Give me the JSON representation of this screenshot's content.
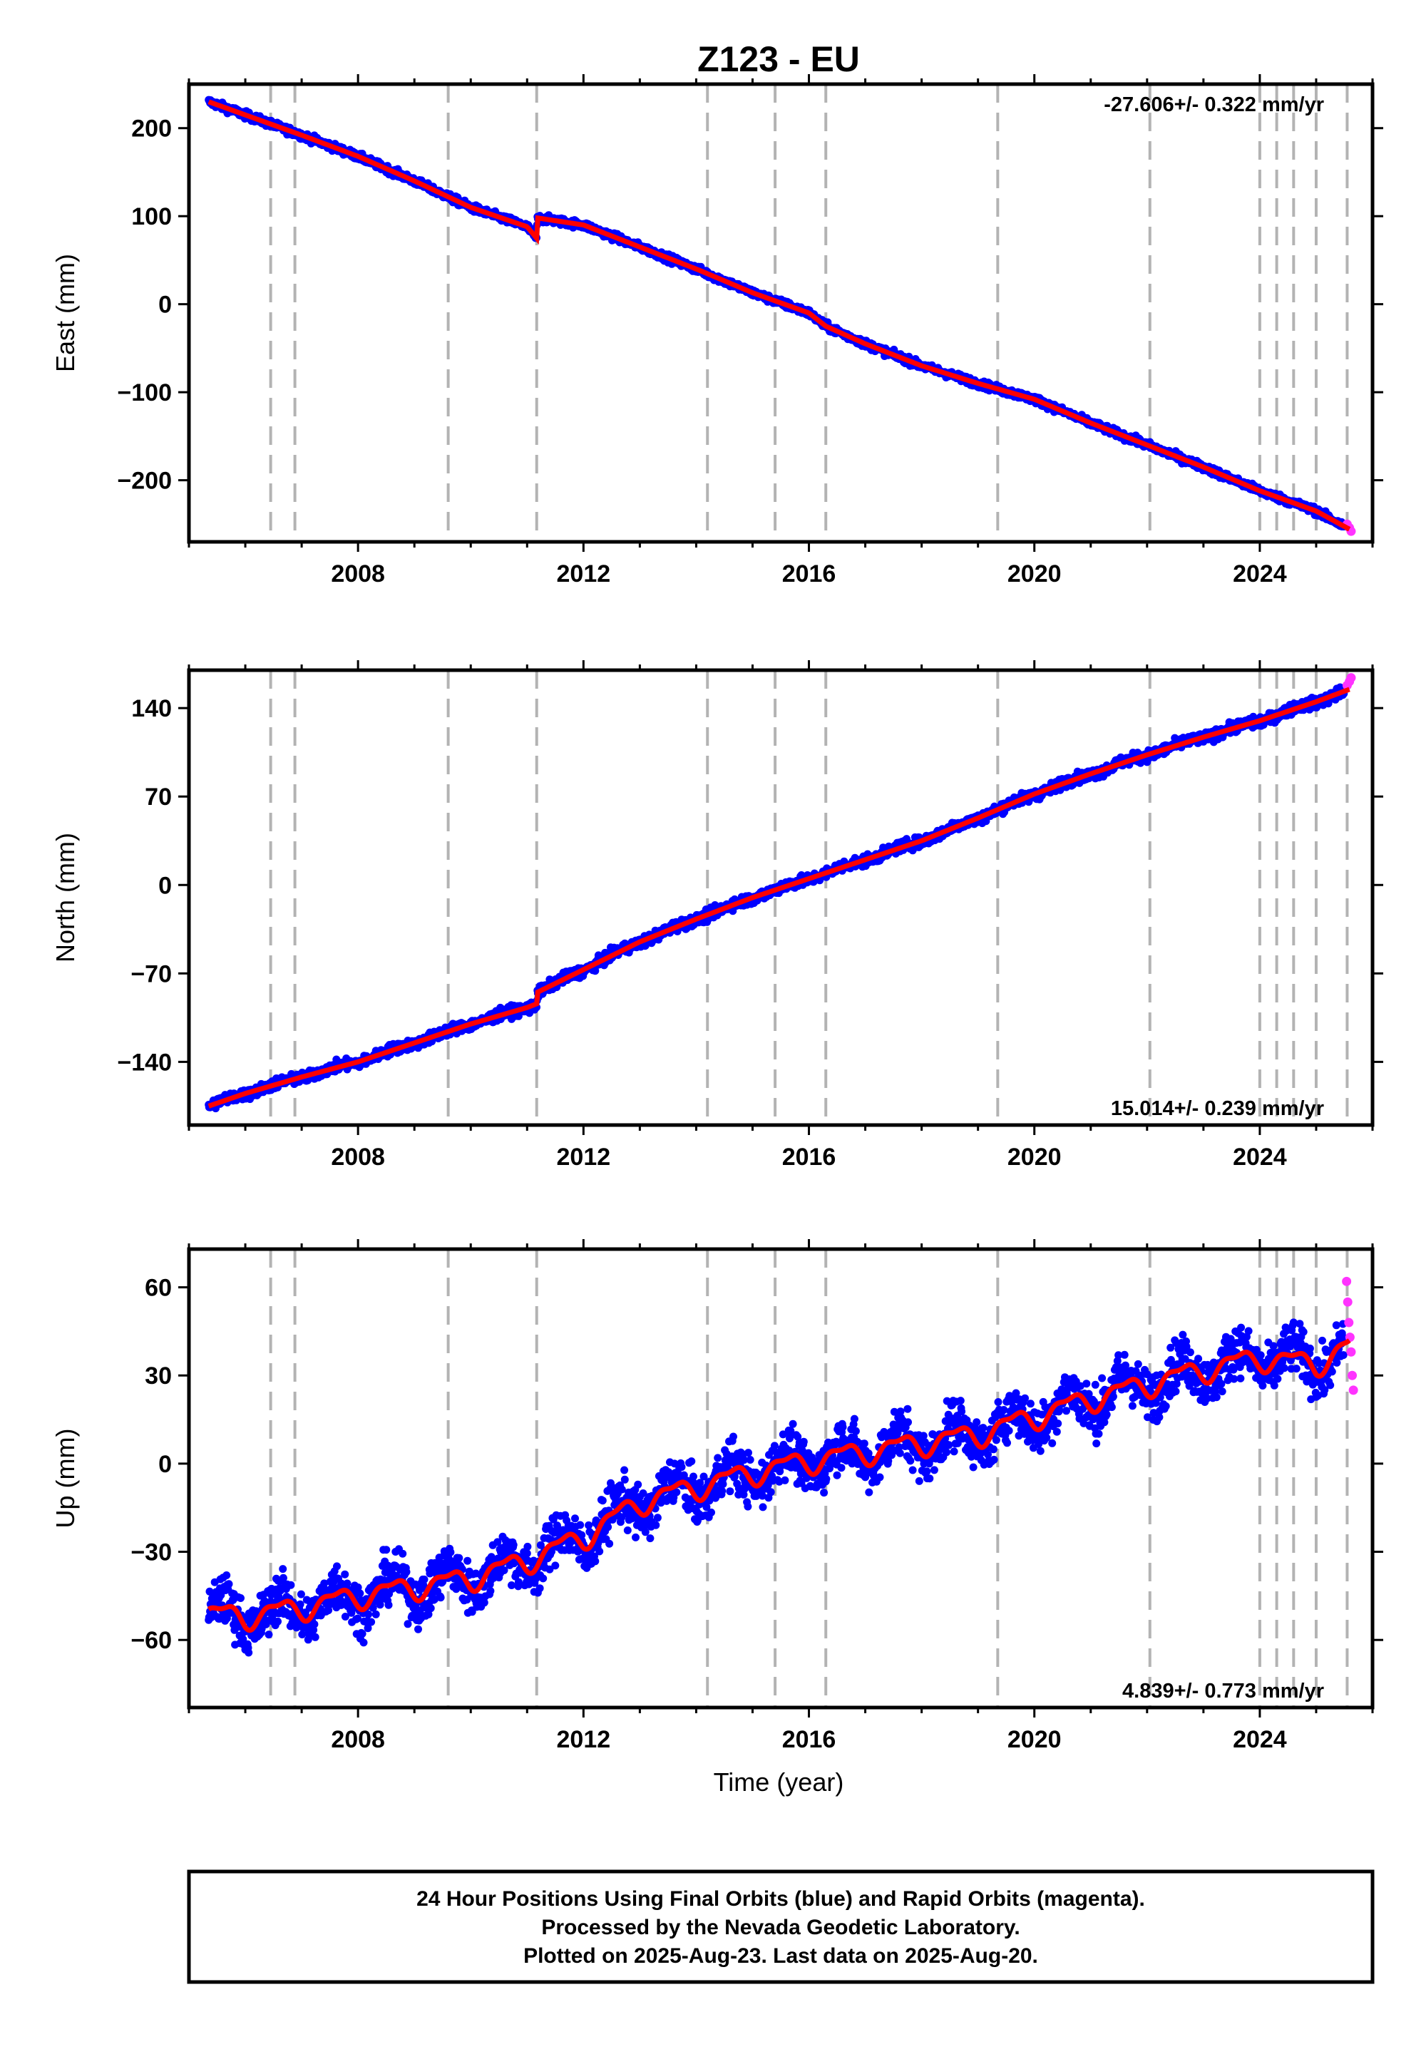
{
  "title": "Z123 - EU",
  "xlabel": "Time (year)",
  "x_ticks": [
    2008,
    2012,
    2016,
    2020,
    2024
  ],
  "event_lines": [
    2006.45,
    2006.88,
    2009.6,
    2011.17,
    2014.2,
    2015.4,
    2016.3,
    2019.35,
    2022.05,
    2024.0,
    2024.3,
    2024.6,
    2025.0,
    2025.55
  ],
  "footer": {
    "line1": "24 Hour Positions Using Final Orbits (blue) and Rapid Orbits (magenta).",
    "line2": "Processed by the Nevada Geodetic Laboratory.",
    "line3": "Plotted on 2025-Aug-23. Last data on 2025-Aug-20."
  },
  "colors": {
    "final": "#0000ff",
    "rapid": "#ff33ff",
    "model": "#ff0000",
    "event": "#b3b3b3"
  },
  "chart_data": [
    {
      "type": "scatter",
      "name": "east",
      "ylabel": "East (mm)",
      "rate_label": "-27.606+/- 0.322 mm/yr",
      "rate_position": "top-right",
      "xlim": [
        2005.0,
        2026.0
      ],
      "ylim": [
        -270,
        250
      ],
      "y_ticks": [
        -200,
        -100,
        0,
        100,
        200
      ],
      "y_tick_labels": [
        "−200",
        "−100",
        "0",
        "100",
        "200"
      ],
      "model_line": {
        "x": [
          2005.35,
          2006,
          2007,
          2008,
          2009,
          2010,
          2011,
          2011.17,
          2011.18,
          2012,
          2013,
          2014,
          2015,
          2016,
          2016.3,
          2017,
          2018,
          2019,
          2020,
          2021,
          2022,
          2023,
          2024,
          2025,
          2025.6
        ],
        "y": [
          230,
          215,
          192,
          168,
          140,
          110,
          88,
          75,
          98,
          90,
          65,
          40,
          13,
          -10,
          -25,
          -45,
          -70,
          -90,
          -108,
          -135,
          -160,
          -185,
          -212,
          -235,
          -256
        ]
      },
      "noise_mm": 3,
      "seasonal_mm": 0,
      "rapid_points": {
        "x": [
          2025.55,
          2025.59,
          2025.62
        ],
        "y": [
          -250,
          -254,
          -258
        ]
      }
    },
    {
      "type": "scatter",
      "name": "north",
      "ylabel": "North (mm)",
      "rate_label": "15.014+/- 0.239 mm/yr",
      "rate_position": "bottom-right",
      "xlim": [
        2005.0,
        2026.0
      ],
      "ylim": [
        -190,
        170
      ],
      "y_ticks": [
        -140,
        -70,
        0,
        70,
        140
      ],
      "y_tick_labels": [
        "−140",
        "−70",
        "0",
        "70",
        "140"
      ],
      "model_line": {
        "x": [
          2005.35,
          2006,
          2007,
          2008,
          2009,
          2010,
          2011,
          2011.17,
          2011.18,
          2012,
          2013,
          2014,
          2015,
          2016,
          2017,
          2018,
          2019,
          2020,
          2021,
          2022,
          2023,
          2024,
          2025,
          2025.6
        ],
        "y": [
          -175,
          -165,
          -152,
          -140,
          -125,
          -110,
          -97,
          -94,
          -85,
          -67,
          -45,
          -27,
          -10,
          5,
          20,
          35,
          53,
          72,
          88,
          103,
          117,
          130,
          145,
          155
        ]
      },
      "noise_mm": 3,
      "seasonal_mm": 1,
      "rapid_points": {
        "x": [
          2025.55,
          2025.59,
          2025.62
        ],
        "y": [
          158,
          161,
          164
        ]
      }
    },
    {
      "type": "scatter",
      "name": "up",
      "ylabel": "Up (mm)",
      "rate_label": "4.839+/- 0.773 mm/yr",
      "rate_position": "bottom-right",
      "xlim": [
        2005.0,
        2026.0
      ],
      "ylim": [
        -83,
        73
      ],
      "y_ticks": [
        -60,
        -30,
        0,
        30,
        60
      ],
      "y_tick_labels": [
        "−60",
        "−30",
        "0",
        "30",
        "60"
      ],
      "model_line": {
        "x": [
          2005.35,
          2006,
          2007,
          2008,
          2009,
          2010,
          2011,
          2012,
          2013,
          2014,
          2015,
          2016,
          2017,
          2018,
          2019,
          2020,
          2021,
          2022,
          2023,
          2024,
          2025,
          2025.6
        ],
        "y": [
          -51,
          -52,
          -49,
          -45,
          -42,
          -39,
          -33,
          -25,
          -13,
          -8,
          -3,
          1,
          4,
          7,
          10,
          16,
          22,
          27,
          32,
          36,
          34,
          40
        ]
      },
      "noise_mm": 6,
      "seasonal_mm": 5,
      "rapid_points": {
        "x": [
          2025.54,
          2025.56,
          2025.58,
          2025.6,
          2025.62,
          2025.64,
          2025.66
        ],
        "y": [
          62,
          55,
          48,
          43,
          38,
          30,
          25
        ]
      }
    }
  ]
}
